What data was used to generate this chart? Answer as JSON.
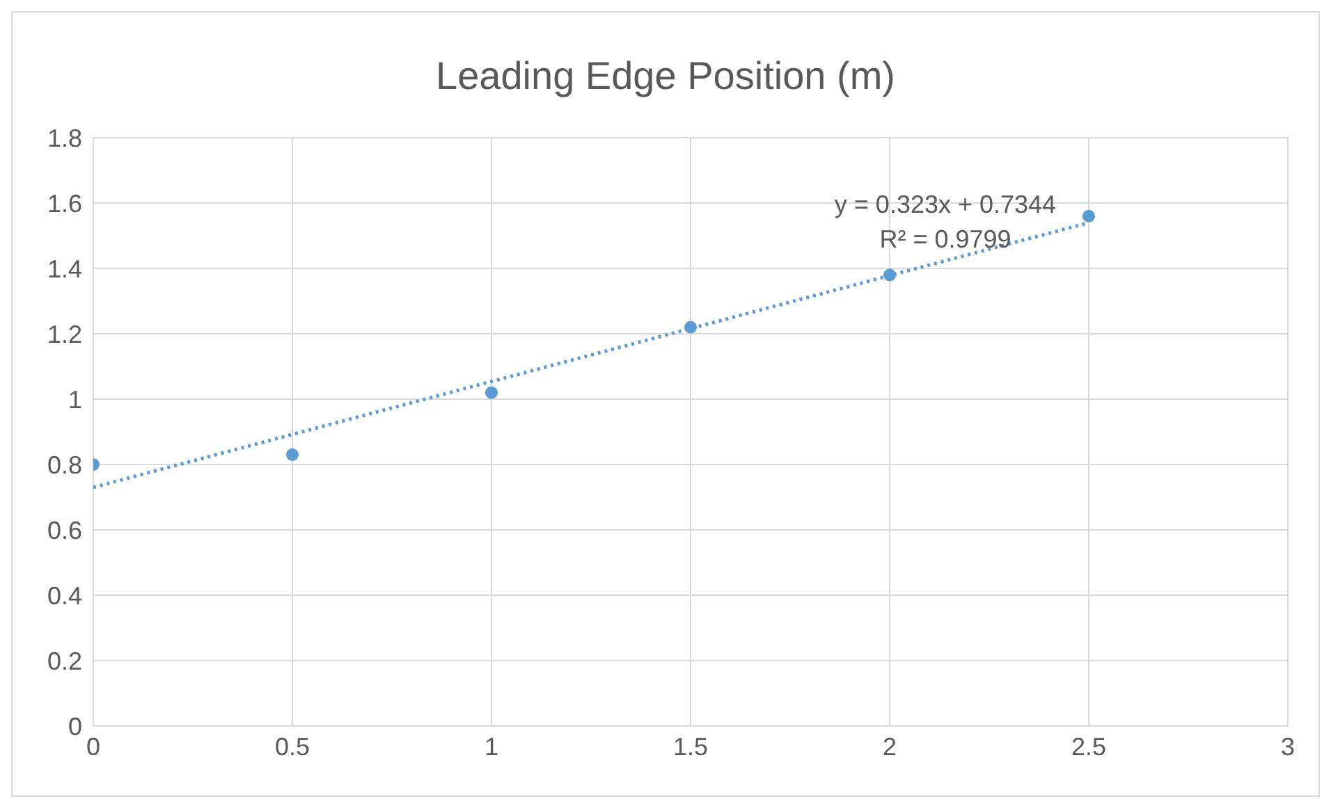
{
  "chart_data": {
    "type": "scatter",
    "title": "Leading Edge Position (m)",
    "series": [
      {
        "color": "#5b9bd5",
        "x": [
          0,
          0.5,
          1,
          1.5,
          2,
          2.5
        ],
        "values": [
          0.8,
          0.83,
          1.02,
          1.22,
          1.38,
          1.56
        ],
        "marker": "circle"
      },
      {
        "type": "line",
        "color": "#5b9bd5",
        "x": [
          0,
          2.5
        ],
        "values": [
          0.73,
          1.54
        ],
        "marker": "none",
        "line_style": "dotted"
      }
    ],
    "xlim": [
      0,
      3
    ],
    "xticks": [
      0,
      0.5,
      1,
      1.5,
      2,
      2.5,
      3
    ],
    "ylim": [
      0,
      1.8
    ],
    "yticks": [
      0,
      0.2,
      0.4,
      0.6,
      0.8,
      1,
      1.2,
      1.4,
      1.6,
      1.8
    ],
    "grid": true,
    "annotations": [
      "y = 0.323x + 0.7344",
      "R² = 0.9799"
    ]
  }
}
